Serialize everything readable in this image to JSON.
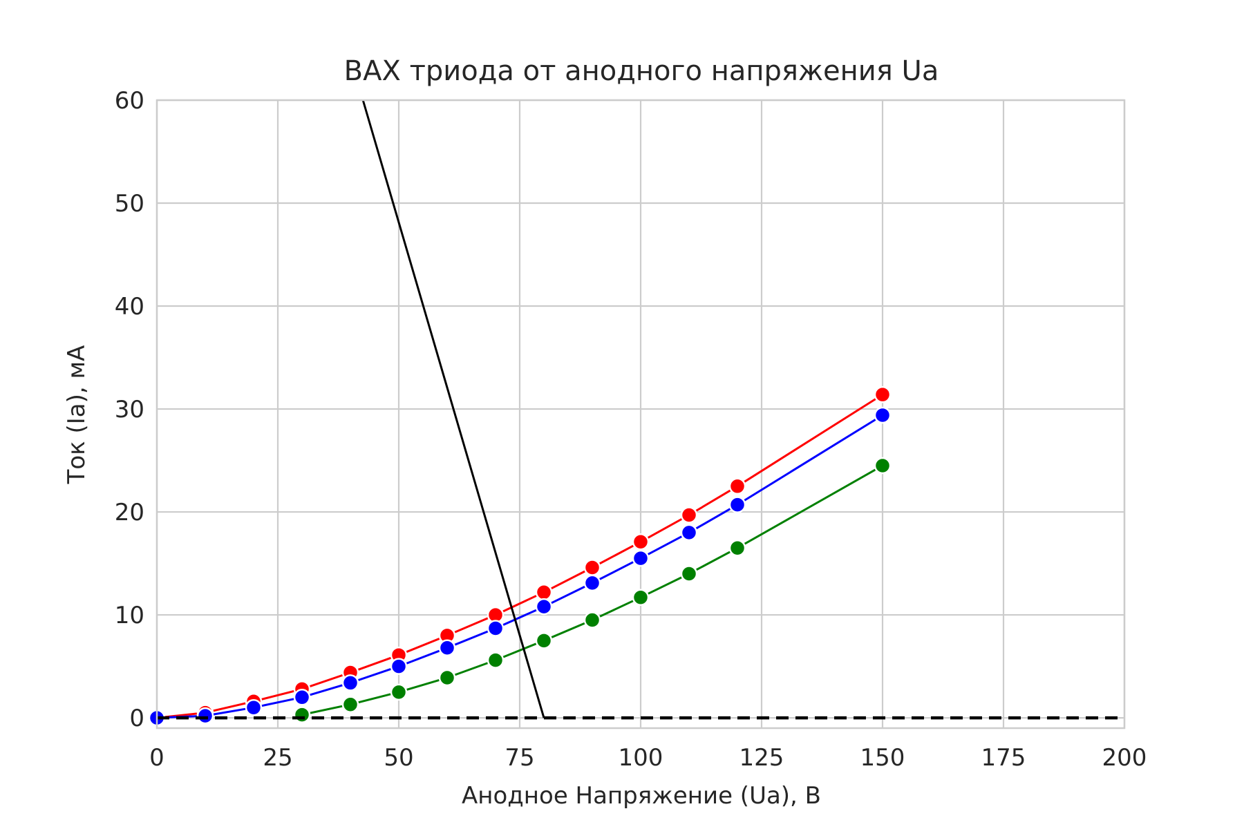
{
  "chart_data": {
    "type": "line",
    "title": "ВАХ триода от анодного напряжения Ua",
    "xlabel": "Анодное Напряжение (Ua), В",
    "ylabel": "Ток (Ia), мА",
    "xlim": [
      0,
      200
    ],
    "ylim": [
      -1,
      60
    ],
    "xticks": [
      0,
      25,
      50,
      75,
      100,
      125,
      150,
      175,
      200
    ],
    "yticks": [
      0,
      10,
      20,
      30,
      40,
      50,
      60
    ],
    "grid": true,
    "legend": "none",
    "series": [
      {
        "color": "#ff0000",
        "markers": true,
        "x": [
          0,
          10,
          20,
          30,
          40,
          50,
          60,
          70,
          80,
          90,
          100,
          110,
          120,
          150
        ],
        "y": [
          0.0,
          0.5,
          1.6,
          2.8,
          4.4,
          6.1,
          8.0,
          10.0,
          12.2,
          14.6,
          17.1,
          19.7,
          22.5,
          31.4
        ]
      },
      {
        "color": "#0000ff",
        "markers": true,
        "x": [
          0,
          10,
          20,
          30,
          40,
          50,
          60,
          70,
          80,
          90,
          100,
          110,
          120,
          150
        ],
        "y": [
          0.0,
          0.2,
          1.0,
          2.0,
          3.4,
          5.0,
          6.8,
          8.7,
          10.8,
          13.1,
          15.5,
          18.0,
          20.7,
          29.4
        ]
      },
      {
        "color": "#008000",
        "markers": true,
        "x": [
          30,
          40,
          50,
          60,
          70,
          80,
          90,
          100,
          110,
          120,
          150
        ],
        "y": [
          0.3,
          1.3,
          2.5,
          3.9,
          5.6,
          7.5,
          9.5,
          11.7,
          14.0,
          16.5,
          24.5
        ]
      },
      {
        "color": "#000000",
        "markers": false,
        "x": [
          42.6,
          80.0
        ],
        "y": [
          60.0,
          0.0
        ]
      },
      {
        "color": "#000000",
        "markers": false,
        "dashed": true,
        "x": [
          0,
          200
        ],
        "y": [
          0.0,
          0.0
        ]
      }
    ]
  }
}
